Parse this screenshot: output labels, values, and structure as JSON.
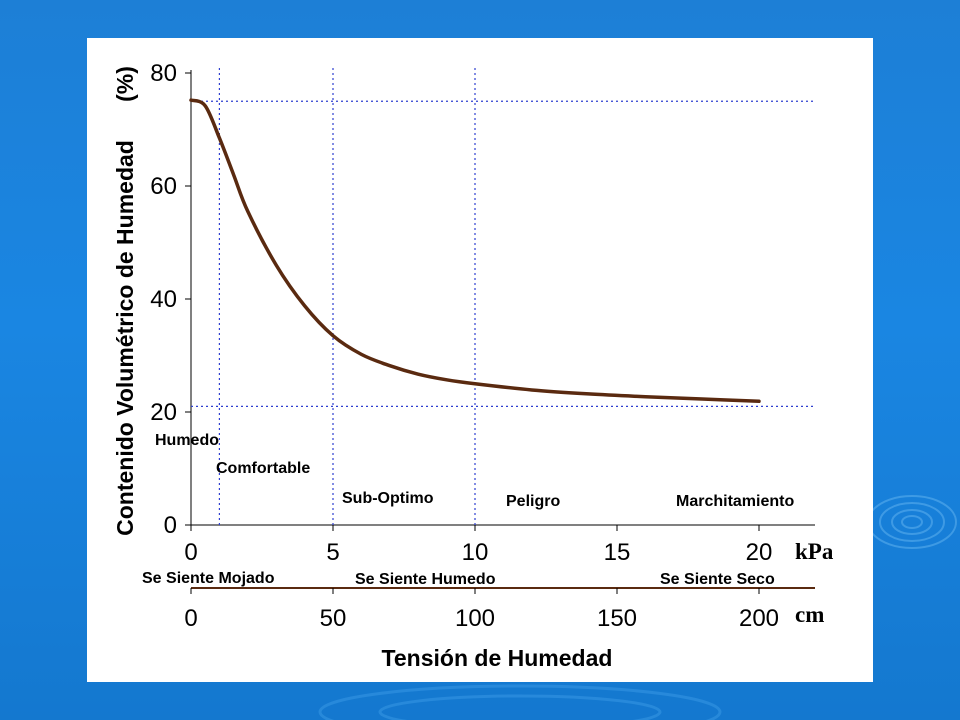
{
  "colors": {
    "background": "#1a86e2",
    "panel": "#ffffff",
    "curve": "#5a2a10",
    "guides": "#2f3fd0"
  },
  "chart_data": {
    "type": "line",
    "title": "",
    "ylabel": "Contenido Volumétrico de Humedad",
    "ylabel_unit": "(%)",
    "xlabel": "Tensión de Humedad",
    "ylim": [
      0,
      80
    ],
    "y_ticks": [
      "0",
      "20",
      "40",
      "60",
      "80"
    ],
    "x_axes": [
      {
        "unit": "kPa",
        "range": [
          0,
          22
        ],
        "ticks": [
          "0",
          "5",
          "10",
          "15",
          "20"
        ]
      },
      {
        "unit": "cm",
        "range": [
          0,
          220
        ],
        "ticks": [
          "0",
          "50",
          "100",
          "150",
          "200"
        ]
      }
    ],
    "series": [
      {
        "x": [
          0,
          0.5,
          1,
          1.5,
          2,
          3,
          4,
          5,
          6,
          7,
          8,
          9,
          10,
          12,
          14,
          16,
          18,
          20
        ],
        "y": [
          75.2,
          74.2,
          68.5,
          62,
          55.5,
          46,
          38.8,
          33.5,
          30.2,
          28.2,
          26.7,
          25.7,
          25,
          23.9,
          23.2,
          22.7,
          22.3,
          21.9
        ]
      }
    ],
    "guide_lines": {
      "vertical_kpa": [
        1,
        5,
        10
      ],
      "horizontal_percent": [
        75,
        21
      ]
    },
    "zones": [
      "Humedo",
      "Comfortable",
      "Sub-Optimo",
      "Peligro",
      "Marchitamiento"
    ],
    "feel_labels": [
      "Se Siente Mojado",
      "Se Siente Humedo",
      "Se Siente Seco"
    ],
    "grid": false,
    "legend": "none"
  }
}
